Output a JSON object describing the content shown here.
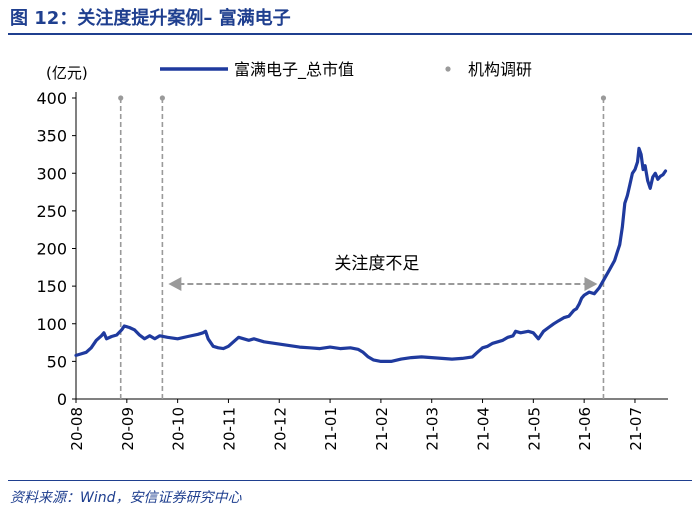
{
  "header": {
    "title": "图 12：关注度提升案例– 富满电子"
  },
  "footer": {
    "source": "资料来源：Wind，安信证券研究中心"
  },
  "chart_data": {
    "type": "line",
    "title": "图 12：关注度提升案例– 富满电子",
    "ylabel": "(亿元)",
    "xlabel": "",
    "ylim": [
      0,
      400
    ],
    "yticks": [
      0,
      50,
      100,
      150,
      200,
      250,
      300,
      350,
      400
    ],
    "categories": [
      "20-08",
      "20-09",
      "20-10",
      "20-11",
      "20-12",
      "21-01",
      "21-02",
      "21-03",
      "21-04",
      "21-05",
      "21-06",
      "21-07"
    ],
    "x_range": [
      0,
      11.65
    ],
    "legend": {
      "position": "top",
      "entries": [
        "富满电子_总市值",
        "机构调研"
      ]
    },
    "series": [
      {
        "name": "富满电子_总市值",
        "color": "#1f3a9e",
        "points": [
          [
            0.0,
            58
          ],
          [
            0.1,
            60
          ],
          [
            0.2,
            62
          ],
          [
            0.3,
            68
          ],
          [
            0.4,
            78
          ],
          [
            0.5,
            84
          ],
          [
            0.55,
            88
          ],
          [
            0.6,
            80
          ],
          [
            0.7,
            83
          ],
          [
            0.8,
            85
          ],
          [
            0.9,
            92
          ],
          [
            0.95,
            97
          ],
          [
            1.05,
            95
          ],
          [
            1.15,
            92
          ],
          [
            1.25,
            85
          ],
          [
            1.35,
            80
          ],
          [
            1.45,
            84
          ],
          [
            1.55,
            80
          ],
          [
            1.65,
            84
          ],
          [
            1.8,
            82
          ],
          [
            2.0,
            80
          ],
          [
            2.2,
            83
          ],
          [
            2.4,
            86
          ],
          [
            2.5,
            88
          ],
          [
            2.55,
            90
          ],
          [
            2.6,
            80
          ],
          [
            2.7,
            70
          ],
          [
            2.8,
            68
          ],
          [
            2.9,
            67
          ],
          [
            3.0,
            70
          ],
          [
            3.1,
            76
          ],
          [
            3.2,
            82
          ],
          [
            3.3,
            80
          ],
          [
            3.4,
            78
          ],
          [
            3.5,
            80
          ],
          [
            3.6,
            78
          ],
          [
            3.7,
            76
          ],
          [
            3.8,
            75
          ],
          [
            4.0,
            73
          ],
          [
            4.2,
            71
          ],
          [
            4.4,
            69
          ],
          [
            4.6,
            68
          ],
          [
            4.8,
            67
          ],
          [
            5.0,
            69
          ],
          [
            5.2,
            67
          ],
          [
            5.4,
            68
          ],
          [
            5.55,
            66
          ],
          [
            5.65,
            62
          ],
          [
            5.75,
            56
          ],
          [
            5.85,
            52
          ],
          [
            6.0,
            50
          ],
          [
            6.2,
            50
          ],
          [
            6.4,
            53
          ],
          [
            6.6,
            55
          ],
          [
            6.8,
            56
          ],
          [
            7.0,
            55
          ],
          [
            7.2,
            54
          ],
          [
            7.4,
            53
          ],
          [
            7.6,
            54
          ],
          [
            7.8,
            56
          ],
          [
            7.9,
            62
          ],
          [
            8.0,
            68
          ],
          [
            8.1,
            70
          ],
          [
            8.2,
            74
          ],
          [
            8.3,
            76
          ],
          [
            8.4,
            78
          ],
          [
            8.5,
            82
          ],
          [
            8.6,
            84
          ],
          [
            8.65,
            90
          ],
          [
            8.75,
            88
          ],
          [
            8.9,
            90
          ],
          [
            9.0,
            88
          ],
          [
            9.1,
            80
          ],
          [
            9.2,
            90
          ],
          [
            9.3,
            95
          ],
          [
            9.4,
            100
          ],
          [
            9.5,
            104
          ],
          [
            9.6,
            108
          ],
          [
            9.7,
            110
          ],
          [
            9.8,
            118
          ],
          [
            9.85,
            120
          ],
          [
            9.9,
            126
          ],
          [
            9.95,
            134
          ],
          [
            10.0,
            138
          ],
          [
            10.1,
            142
          ],
          [
            10.2,
            140
          ],
          [
            10.3,
            148
          ],
          [
            10.4,
            160
          ],
          [
            10.5,
            172
          ],
          [
            10.6,
            184
          ],
          [
            10.65,
            195
          ],
          [
            10.7,
            205
          ],
          [
            10.75,
            228
          ],
          [
            10.8,
            260
          ],
          [
            10.85,
            270
          ],
          [
            10.9,
            285
          ],
          [
            10.95,
            300
          ],
          [
            11.0,
            305
          ],
          [
            11.05,
            315
          ],
          [
            11.08,
            333
          ],
          [
            11.12,
            325
          ],
          [
            11.16,
            305
          ],
          [
            11.2,
            310
          ],
          [
            11.25,
            290
          ],
          [
            11.3,
            280
          ],
          [
            11.35,
            295
          ],
          [
            11.4,
            300
          ],
          [
            11.45,
            292
          ],
          [
            11.5,
            296
          ],
          [
            11.55,
            298
          ],
          [
            11.6,
            303
          ]
        ]
      },
      {
        "name": "机构调研",
        "color": "#9a9a9a",
        "type": "event_lines",
        "x": [
          0.88,
          1.7,
          10.38
        ]
      }
    ],
    "annotations": [
      {
        "text": "关注度不足",
        "from_x": 1.7,
        "to_x": 10.38,
        "y": 190,
        "style": "dashed double arrow"
      }
    ],
    "grid": false
  }
}
